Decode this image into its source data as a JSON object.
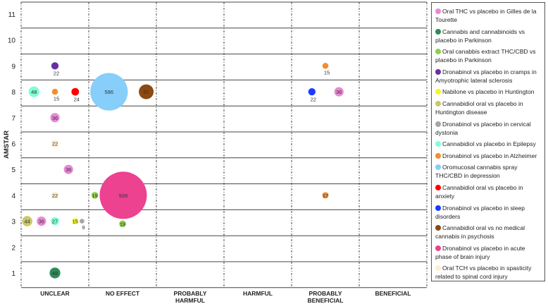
{
  "chart_data": {
    "type": "scatter",
    "subtype": "bubble",
    "ylabel": "AMSTAR",
    "xlabel": "",
    "categories": [
      "UNCLEAR",
      "NO EFFECT",
      "PROBABLY HARMFUL",
      "HARMFUL",
      "PROBABLY BENEFICIAL",
      "BENEFICIAL"
    ],
    "yticks": [
      1,
      2,
      3,
      4,
      5,
      6,
      7,
      8,
      9,
      10,
      11
    ],
    "ylim": [
      0.5,
      11.5
    ],
    "legend_position": "right",
    "series": [
      {
        "name": "Oral THC vs placebo in Gilles de la Tourette",
        "color": "#e889d6",
        "points": [
          {
            "x": 0.5,
            "y": 7,
            "n": 36
          },
          {
            "x": 0.7,
            "y": 5,
            "n": 36
          },
          {
            "x": 0.3,
            "y": 3,
            "n": 36
          },
          {
            "x": 4.7,
            "y": 8,
            "n": 36
          }
        ]
      },
      {
        "name": "Cannabis and cannabinoids vs placebo in Parkinson",
        "color": "#2e8b57",
        "points": [
          {
            "x": 0.5,
            "y": 1,
            "n": 48
          }
        ]
      },
      {
        "name": "Oral canabbis extract THC/CBD  vs placebo in Parkinson",
        "color": "#8fd04a",
        "points": [
          {
            "x": 1.09,
            "y": 4,
            "n": 19
          },
          {
            "x": 1.5,
            "y": 2.9,
            "n": 19
          }
        ]
      },
      {
        "name": "Dronabinol vs placebo in cramps in Amyotrophic lateral sclerosis",
        "color": "#6a2fa0",
        "points": [
          {
            "x": 0.5,
            "y": 9,
            "n": 22,
            "label": "below"
          }
        ]
      },
      {
        "name": "Nabilone vs placebo in Huntington",
        "color": "#f5f522",
        "points": [
          {
            "x": 0.8,
            "y": 3,
            "n": 15
          }
        ]
      },
      {
        "name": "Cannabidiol oral vs placebo in Huntington disease",
        "color": "#cbc86a",
        "points": [
          {
            "x": 0.09,
            "y": 3,
            "n": 44
          }
        ]
      },
      {
        "name": "Dronabinol vs placebo in cervical dystonia",
        "color": "#a6a6a6",
        "points": [
          {
            "x": 0.9,
            "y": 3,
            "n": 9,
            "label": "below"
          }
        ]
      },
      {
        "name": "Cannabidiol vs placebo in Epilepsy",
        "color": "#7fffd4",
        "points": [
          {
            "x": 0.19,
            "y": 8,
            "n": 48
          },
          {
            "x": 0.5,
            "y": 3,
            "n": 27
          }
        ]
      },
      {
        "name": "Dronabinol vs placebo in Alzheimer",
        "color": "#f28e30",
        "points": [
          {
            "x": 0.5,
            "y": 8,
            "n": 15,
            "label": "below"
          },
          {
            "x": 4.5,
            "y": 9,
            "n": 15,
            "label": "below"
          },
          {
            "x": 4.5,
            "y": 4,
            "n": 17
          }
        ]
      },
      {
        "name": "Oromucosal cannabis spray THC/CBD in depression",
        "color": "#87cefa",
        "points": [
          {
            "x": 1.3,
            "y": 8,
            "n": 586
          }
        ]
      },
      {
        "name": "Cannabidiol oral vs placebo in anxiety",
        "color": "#ff0000",
        "points": [
          {
            "x": 0.8,
            "y": 8,
            "n": 24,
            "label": "below"
          }
        ]
      },
      {
        "name": "Dronabinol vs placebo in sleep disorders",
        "color": "#1a3cff",
        "points": [
          {
            "x": 4.3,
            "y": 8,
            "n": 22,
            "label": "below"
          }
        ]
      },
      {
        "name": "Cannabidiol oral vs no medical cannabis in psychosis",
        "color": "#8b4a12",
        "points": [
          {
            "x": 1.85,
            "y": 8,
            "n": 91
          }
        ]
      },
      {
        "name": "Dronabinol vs placebo in acute phase of brain injury",
        "color": "#ec4290",
        "points": [
          {
            "x": 1.51,
            "y": 4,
            "n": 928
          }
        ]
      },
      {
        "name": "Oral TCH vs placebo in spasticity related to spinal cord injury",
        "color": "#fdf0d0",
        "points": [
          {
            "x": 0.5,
            "y": 6,
            "n": 22
          },
          {
            "x": 0.5,
            "y": 4,
            "n": 22
          }
        ]
      }
    ]
  }
}
